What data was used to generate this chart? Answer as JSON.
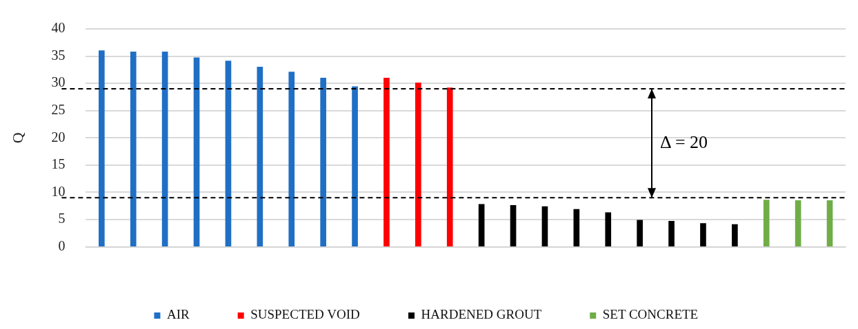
{
  "chart_data": {
    "type": "bar",
    "ylabel": "Q",
    "categories": [
      null,
      null,
      null,
      null,
      null,
      null,
      null,
      null,
      null,
      null,
      null,
      null,
      null,
      null,
      null,
      null,
      null,
      null,
      null,
      null,
      null,
      null,
      null,
      null
    ],
    "series": [
      {
        "name": "AIR",
        "color": "#1f6fc5",
        "values": [
          36.0,
          35.8,
          35.8,
          34.7,
          34.1,
          33.0,
          32.1,
          31.0,
          29.4,
          null,
          null,
          null,
          null,
          null,
          null,
          null,
          null,
          null,
          null,
          null,
          null,
          null,
          null,
          null
        ]
      },
      {
        "name": "SUSPECTED VOID",
        "color": "#ff0000",
        "values": [
          null,
          null,
          null,
          null,
          null,
          null,
          null,
          null,
          null,
          31.0,
          30.1,
          29.2,
          null,
          null,
          null,
          null,
          null,
          null,
          null,
          null,
          null,
          null,
          null,
          null
        ]
      },
      {
        "name": "HARDENED GROUT",
        "color": "#000000",
        "values": [
          null,
          null,
          null,
          null,
          null,
          null,
          null,
          null,
          null,
          null,
          null,
          null,
          7.8,
          7.6,
          7.4,
          6.9,
          6.3,
          4.9,
          4.7,
          4.3,
          4.1,
          null,
          null,
          null
        ]
      },
      {
        "name": "SET CONCRETE",
        "color": "#70ad47",
        "values": [
          null,
          null,
          null,
          null,
          null,
          null,
          null,
          null,
          null,
          null,
          null,
          null,
          null,
          null,
          null,
          null,
          null,
          null,
          null,
          null,
          null,
          8.6,
          8.5,
          8.5
        ]
      }
    ],
    "ylim": [
      0,
      40
    ],
    "yticks": [
      0,
      5,
      10,
      15,
      20,
      25,
      30,
      35,
      40
    ],
    "grid": "y",
    "legend": "bottom",
    "ref_lines": [
      {
        "axis": "y",
        "value": 29,
        "color": "#000000",
        "line_style": "dashed"
      },
      {
        "axis": "y",
        "value": 9,
        "color": "#000000",
        "line_style": "dashed"
      }
    ],
    "annotations": [
      "Δ = 20"
    ]
  }
}
